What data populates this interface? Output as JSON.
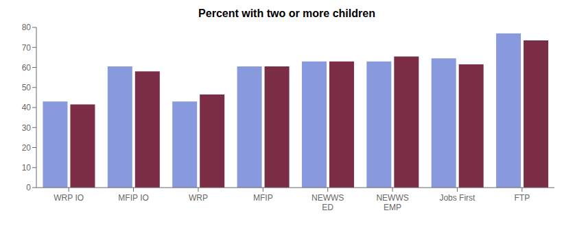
{
  "chart_data": {
    "type": "bar",
    "title": "Percent with two or more children",
    "categories": [
      "WRP IO",
      "MFIP IO",
      "WRP",
      "MFIP",
      "NEWWS\nED",
      "NEWWS\nEMP",
      "Jobs First",
      "FTP"
    ],
    "series": [
      {
        "color": "#8899DD",
        "values": [
          43,
          60.5,
          43,
          60.5,
          63,
          63,
          64.5,
          77
        ]
      },
      {
        "color": "#7B2D45",
        "values": [
          41.5,
          58,
          46.5,
          60.5,
          63,
          65.5,
          61.5,
          73.5
        ]
      }
    ],
    "ylim": [
      0,
      80
    ],
    "yticks": [
      0,
      10,
      20,
      30,
      40,
      50,
      60,
      70,
      80
    ],
    "grid": false
  }
}
